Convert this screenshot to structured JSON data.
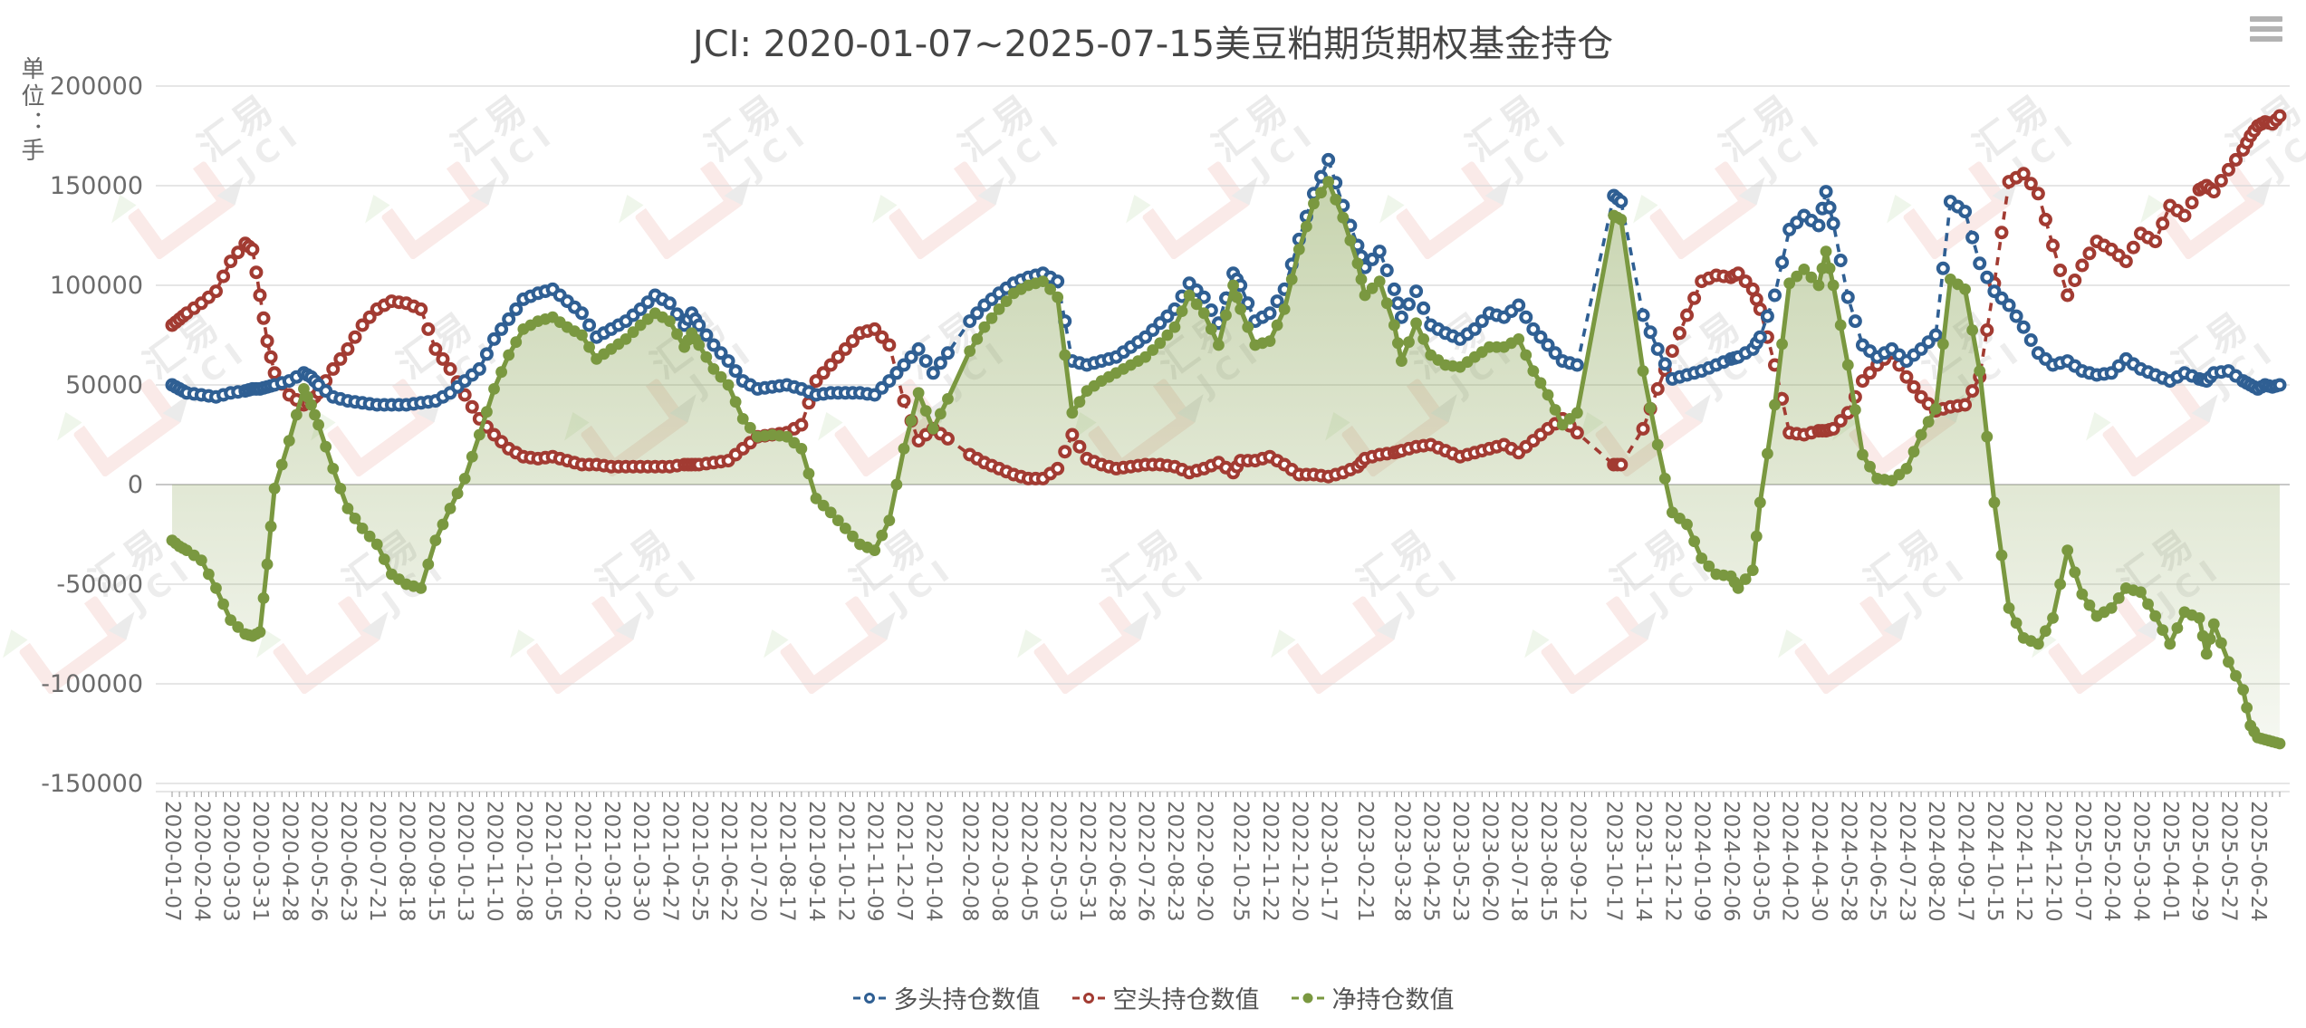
{
  "title": "JCI: 2020-01-07~2025-07-15美豆粕期货期权基金持仓",
  "unit_label": "单位：手",
  "menu_icon": "hamburger-menu",
  "watermark": {
    "text1": "汇易",
    "text2": "JCI"
  },
  "colors": {
    "long": "#2F5F93",
    "short": "#A23B32",
    "net": "#7A9840",
    "net_area": "#7A9840",
    "grid": "#d7d7d7",
    "zero_line": "#b5b5b5",
    "axis_tick": "#9a9a9a",
    "axis_text": "#6b6b6b",
    "title_text": "#454545",
    "legend_text": "#555555"
  },
  "legend": [
    {
      "id": "long",
      "label": "多头持仓数值",
      "filled": false
    },
    {
      "id": "short",
      "label": "空头持仓数值",
      "filled": false
    },
    {
      "id": "net",
      "label": "净持仓数值",
      "filled": true
    }
  ],
  "chart_data": {
    "type": "line",
    "title": "JCI: 2020-01-07~2025-07-15美豆粕期货期权基金持仓",
    "xlabel": "",
    "ylabel": "单位：手",
    "ylim": [
      -150000,
      200000
    ],
    "y_ticks": [
      200000,
      150000,
      100000,
      50000,
      0,
      -50000,
      -100000,
      -150000
    ],
    "grid": true,
    "legend_position": "bottom",
    "x_tick_labels": [
      "2020-01-07",
      "2020-02-04",
      "2020-03-03",
      "2020-03-31",
      "2020-04-28",
      "2020-05-26",
      "2020-06-23",
      "2020-07-21",
      "2020-08-18",
      "2020-09-15",
      "2020-10-13",
      "2020-11-10",
      "2020-12-08",
      "2021-01-05",
      "2021-02-02",
      "2021-03-02",
      "2021-03-30",
      "2021-04-27",
      "2021-05-25",
      "2021-06-22",
      "2021-07-20",
      "2021-08-17",
      "2021-09-14",
      "2021-10-12",
      "2021-11-09",
      "2021-12-07",
      "2022-01-04",
      "2022-02-08",
      "2022-03-08",
      "2022-04-05",
      "2022-05-03",
      "2022-05-31",
      "2022-06-28",
      "2022-07-26",
      "2022-08-23",
      "2022-09-20",
      "2022-10-25",
      "2022-11-22",
      "2022-12-20",
      "2023-01-17",
      "2023-02-21",
      "2023-03-28",
      "2023-04-25",
      "2023-05-23",
      "2023-06-20",
      "2023-07-18",
      "2023-08-15",
      "2023-09-12",
      "2023-10-17",
      "2023-11-14",
      "2023-12-12",
      "2024-01-09",
      "2024-02-06",
      "2024-03-05",
      "2024-04-02",
      "2024-04-30",
      "2024-05-28",
      "2024-06-25",
      "2024-07-23",
      "2024-08-20",
      "2024-09-17",
      "2024-10-15",
      "2024-11-12",
      "2024-12-10",
      "2025-01-07",
      "2025-02-04",
      "2025-03-04",
      "2025-04-01",
      "2025-04-29",
      "2025-05-27",
      "2025-06-24"
    ],
    "columns": [
      "date",
      "多头持仓数值",
      "空头持仓数值",
      "净持仓数值"
    ],
    "points": [
      [
        "2020-01-07",
        50000,
        80000,
        -28000
      ],
      [
        "2020-01-14",
        48000,
        83000,
        -31000
      ],
      [
        "2020-01-21",
        46000,
        86000,
        -33000
      ],
      [
        "2020-02-04",
        45000,
        91000,
        -38000
      ],
      [
        "2020-02-18",
        44000,
        97000,
        -52000
      ],
      [
        "2020-03-03",
        46000,
        112000,
        -68000
      ],
      [
        "2020-03-17",
        47000,
        121000,
        -75000
      ],
      [
        "2020-03-24",
        48000,
        118000,
        -76000
      ],
      [
        "2020-03-31",
        48000,
        95000,
        -74000
      ],
      [
        "2020-04-07",
        49000,
        72000,
        -40000
      ],
      [
        "2020-04-14",
        50000,
        56000,
        -2000
      ],
      [
        "2020-04-28",
        52000,
        45000,
        22000
      ],
      [
        "2020-05-12",
        56000,
        40000,
        48000
      ],
      [
        "2020-05-19",
        54000,
        42000,
        40000
      ],
      [
        "2020-05-26",
        50000,
        46000,
        30000
      ],
      [
        "2020-06-09",
        44000,
        58000,
        8000
      ],
      [
        "2020-06-23",
        42000,
        68000,
        -12000
      ],
      [
        "2020-07-07",
        41000,
        80000,
        -22000
      ],
      [
        "2020-07-21",
        40000,
        88000,
        -30000
      ],
      [
        "2020-08-04",
        40000,
        92000,
        -45000
      ],
      [
        "2020-08-18",
        40000,
        91000,
        -50000
      ],
      [
        "2020-09-01",
        41000,
        88000,
        -52000
      ],
      [
        "2020-09-15",
        42000,
        68000,
        -28000
      ],
      [
        "2020-09-29",
        46000,
        58000,
        -12000
      ],
      [
        "2020-10-13",
        52000,
        45000,
        3000
      ],
      [
        "2020-10-27",
        58000,
        33000,
        25000
      ],
      [
        "2020-11-10",
        73000,
        25000,
        48000
      ],
      [
        "2020-11-24",
        83000,
        18000,
        65000
      ],
      [
        "2020-12-08",
        93000,
        14000,
        78000
      ],
      [
        "2020-12-22",
        96000,
        13000,
        82000
      ],
      [
        "2021-01-05",
        98000,
        14000,
        84000
      ],
      [
        "2021-01-19",
        92000,
        12000,
        79000
      ],
      [
        "2021-02-02",
        86000,
        10000,
        75000
      ],
      [
        "2021-02-16",
        74000,
        10000,
        63000
      ],
      [
        "2021-03-02",
        78000,
        9000,
        68000
      ],
      [
        "2021-03-16",
        82000,
        9000,
        73000
      ],
      [
        "2021-03-30",
        88000,
        9000,
        80000
      ],
      [
        "2021-04-13",
        95000,
        9000,
        86000
      ],
      [
        "2021-04-27",
        91000,
        9000,
        82000
      ],
      [
        "2021-05-11",
        80000,
        10000,
        69000
      ],
      [
        "2021-05-18",
        86000,
        10000,
        76000
      ],
      [
        "2021-05-25",
        80000,
        10000,
        70000
      ],
      [
        "2021-06-08",
        70000,
        11000,
        58000
      ],
      [
        "2021-06-22",
        62000,
        12000,
        50000
      ],
      [
        "2021-07-06",
        52000,
        18000,
        33000
      ],
      [
        "2021-07-20",
        48000,
        24000,
        24000
      ],
      [
        "2021-08-03",
        49000,
        25000,
        25000
      ],
      [
        "2021-08-17",
        50000,
        26000,
        24000
      ],
      [
        "2021-08-31",
        48000,
        30000,
        18000
      ],
      [
        "2021-09-14",
        45000,
        52000,
        -7000
      ],
      [
        "2021-09-28",
        46000,
        60000,
        -14000
      ],
      [
        "2021-10-12",
        46000,
        68000,
        -22000
      ],
      [
        "2021-10-26",
        46000,
        76000,
        -30000
      ],
      [
        "2021-11-09",
        45000,
        78000,
        -33000
      ],
      [
        "2021-11-23",
        52000,
        70000,
        -18000
      ],
      [
        "2021-12-07",
        60000,
        42000,
        18000
      ],
      [
        "2021-12-21",
        68000,
        22000,
        46000
      ],
      [
        "2022-01-04",
        56000,
        28000,
        28000
      ],
      [
        "2022-01-18",
        66000,
        23000,
        43000
      ],
      [
        "2022-02-08",
        82000,
        15000,
        67000
      ],
      [
        "2022-02-22",
        90000,
        11000,
        79000
      ],
      [
        "2022-03-08",
        96000,
        8000,
        88000
      ],
      [
        "2022-03-22",
        101000,
        5000,
        96000
      ],
      [
        "2022-04-05",
        104000,
        3000,
        100000
      ],
      [
        "2022-04-19",
        106000,
        3000,
        102000
      ],
      [
        "2022-05-03",
        102000,
        8000,
        94000
      ],
      [
        "2022-05-17",
        62000,
        25000,
        36000
      ],
      [
        "2022-05-31",
        60000,
        13000,
        47000
      ],
      [
        "2022-06-14",
        62000,
        10000,
        52000
      ],
      [
        "2022-06-28",
        64000,
        8000,
        56000
      ],
      [
        "2022-07-12",
        69000,
        9000,
        60000
      ],
      [
        "2022-07-26",
        74000,
        10000,
        64000
      ],
      [
        "2022-08-09",
        81000,
        10000,
        71000
      ],
      [
        "2022-08-23",
        88000,
        9000,
        79000
      ],
      [
        "2022-09-06",
        101000,
        6000,
        95000
      ],
      [
        "2022-09-20",
        94000,
        8000,
        86000
      ],
      [
        "2022-10-04",
        81000,
        11000,
        70000
      ],
      [
        "2022-10-18",
        106000,
        6000,
        100000
      ],
      [
        "2022-10-25",
        100000,
        12000,
        88000
      ],
      [
        "2022-11-08",
        82000,
        12000,
        70000
      ],
      [
        "2022-11-22",
        86000,
        14000,
        72000
      ],
      [
        "2022-12-06",
        98000,
        10000,
        88000
      ],
      [
        "2022-12-20",
        123000,
        5000,
        118000
      ],
      [
        "2023-01-03",
        146000,
        5000,
        141000
      ],
      [
        "2023-01-17",
        163000,
        4000,
        152000
      ],
      [
        "2023-01-31",
        140000,
        6000,
        134000
      ],
      [
        "2023-02-14",
        120000,
        9000,
        111000
      ],
      [
        "2023-02-21",
        109000,
        13000,
        95000
      ],
      [
        "2023-03-07",
        117000,
        15000,
        102000
      ],
      [
        "2023-03-21",
        98000,
        16000,
        80000
      ],
      [
        "2023-03-28",
        84000,
        17000,
        62000
      ],
      [
        "2023-04-11",
        97000,
        19000,
        81000
      ],
      [
        "2023-04-25",
        80000,
        20000,
        65000
      ],
      [
        "2023-05-09",
        76000,
        17000,
        60000
      ],
      [
        "2023-05-23",
        73000,
        14000,
        59000
      ],
      [
        "2023-06-06",
        78000,
        16000,
        64000
      ],
      [
        "2023-06-20",
        86000,
        18000,
        69000
      ],
      [
        "2023-07-04",
        84000,
        20000,
        69000
      ],
      [
        "2023-07-18",
        90000,
        16000,
        73000
      ],
      [
        "2023-08-01",
        78000,
        22000,
        57000
      ],
      [
        "2023-08-15",
        70000,
        28000,
        45000
      ],
      [
        "2023-08-29",
        62000,
        33000,
        30000
      ],
      [
        "2023-09-12",
        60000,
        26000,
        36000
      ],
      [
        "2023-10-17",
        145000,
        10000,
        135000
      ],
      [
        "2023-10-24",
        142000,
        10000,
        133000
      ],
      [
        "2023-11-14",
        85000,
        28000,
        57000
      ],
      [
        "2023-11-28",
        68000,
        48000,
        20000
      ],
      [
        "2023-12-12",
        53000,
        67000,
        -14000
      ],
      [
        "2023-12-26",
        55000,
        85000,
        -20000
      ],
      [
        "2024-01-09",
        57000,
        102000,
        -37000
      ],
      [
        "2024-01-23",
        60000,
        105000,
        -45000
      ],
      [
        "2024-02-06",
        63000,
        104000,
        -46000
      ],
      [
        "2024-02-13",
        64000,
        106000,
        -52000
      ],
      [
        "2024-02-27",
        68000,
        98000,
        -43000
      ],
      [
        "2024-03-05",
        74000,
        88000,
        -9000
      ],
      [
        "2024-03-19",
        95000,
        60000,
        40000
      ],
      [
        "2024-04-02",
        128000,
        26000,
        101000
      ],
      [
        "2024-04-16",
        135000,
        25000,
        108000
      ],
      [
        "2024-04-30",
        130000,
        27000,
        100000
      ],
      [
        "2024-05-07",
        147000,
        27000,
        117000
      ],
      [
        "2024-05-14",
        131000,
        28000,
        100000
      ],
      [
        "2024-05-28",
        94000,
        36000,
        60000
      ],
      [
        "2024-06-11",
        70000,
        52000,
        15000
      ],
      [
        "2024-06-25",
        64000,
        60000,
        3000
      ],
      [
        "2024-07-09",
        68000,
        66000,
        2000
      ],
      [
        "2024-07-23",
        62000,
        54000,
        8000
      ],
      [
        "2024-08-06",
        68000,
        44000,
        25000
      ],
      [
        "2024-08-20",
        75000,
        37000,
        38000
      ],
      [
        "2024-09-03",
        142000,
        39000,
        103000
      ],
      [
        "2024-09-17",
        137000,
        40000,
        98000
      ],
      [
        "2024-10-01",
        111000,
        54000,
        57000
      ],
      [
        "2024-10-15",
        97000,
        101000,
        -9000
      ],
      [
        "2024-10-29",
        90000,
        152000,
        -62000
      ],
      [
        "2024-11-12",
        79000,
        156000,
        -77000
      ],
      [
        "2024-11-26",
        66000,
        146000,
        -80000
      ],
      [
        "2024-12-10",
        60000,
        120000,
        -67000
      ],
      [
        "2024-12-24",
        62000,
        95000,
        -33000
      ],
      [
        "2025-01-07",
        57000,
        110000,
        -55000
      ],
      [
        "2025-01-21",
        55000,
        122000,
        -66000
      ],
      [
        "2025-02-04",
        56000,
        118000,
        -62000
      ],
      [
        "2025-02-18",
        63000,
        112000,
        -52000
      ],
      [
        "2025-03-04",
        58000,
        126000,
        -54000
      ],
      [
        "2025-03-18",
        55000,
        122000,
        -66000
      ],
      [
        "2025-04-01",
        52000,
        140000,
        -80000
      ],
      [
        "2025-04-15",
        56000,
        135000,
        -64000
      ],
      [
        "2025-04-29",
        53000,
        148000,
        -67000
      ],
      [
        "2025-05-06",
        52000,
        150000,
        -85000
      ],
      [
        "2025-05-13",
        56000,
        147000,
        -70000
      ],
      [
        "2025-05-27",
        57000,
        158000,
        -89000
      ],
      [
        "2025-06-10",
        52000,
        168000,
        -103000
      ],
      [
        "2025-06-17",
        50000,
        175000,
        -121000
      ],
      [
        "2025-06-24",
        48000,
        180000,
        -127000
      ],
      [
        "2025-07-01",
        50000,
        182000,
        -128000
      ],
      [
        "2025-07-08",
        49000,
        181000,
        -129000
      ],
      [
        "2025-07-15",
        50000,
        185000,
        -130000
      ]
    ]
  }
}
